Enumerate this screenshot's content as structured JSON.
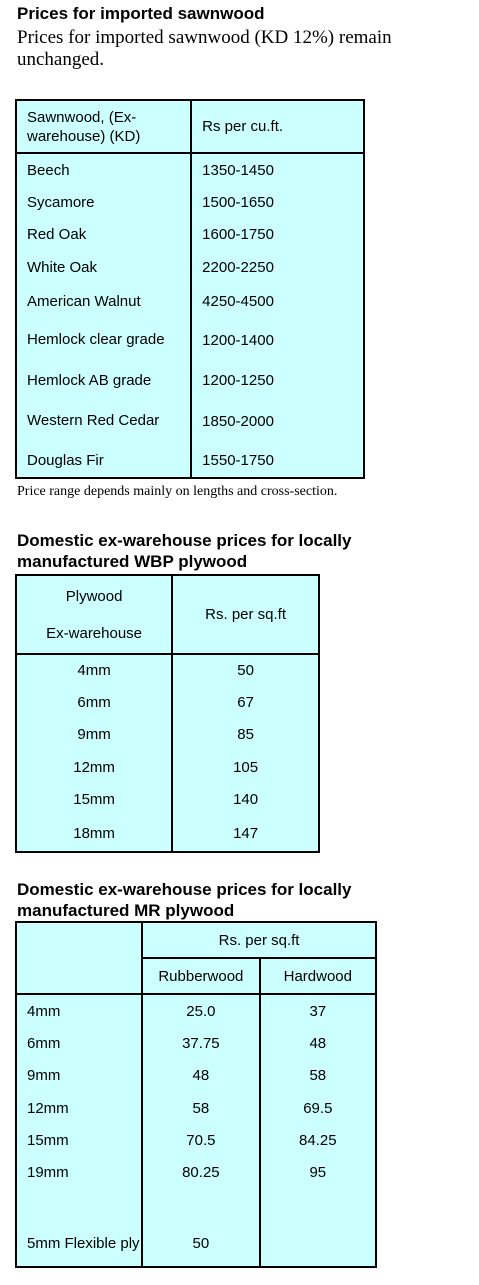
{
  "sawnwood": {
    "title": "Prices for imported sawnwood",
    "intro": "Prices for imported sawnwood (KD 12%) remain unchanged.",
    "header_col1": "Sawnwood, (Ex-warehouse) (KD)",
    "header_col2": "Rs per cu.ft.",
    "rows": [
      {
        "name": "Beech",
        "price": "1350-1450"
      },
      {
        "name": "Sycamore",
        "price": "1500-1650"
      },
      {
        "name": "Red Oak",
        "price": "1600-1750"
      },
      {
        "name": "White Oak",
        "price": "2200-2250"
      },
      {
        "name": "American Walnut",
        "price": "4250-4500"
      },
      {
        "name": "Hemlock clear grade",
        "price": "1200-1400"
      },
      {
        "name": "Hemlock AB grade",
        "price": "1200-1250"
      },
      {
        "name": "Western Red Cedar",
        "price": "1850-2000"
      },
      {
        "name": "Douglas Fir",
        "price": "1550-1750"
      }
    ],
    "note": "Price range depends mainly on lengths and cross-section."
  },
  "wbp": {
    "title": "Domestic ex-warehouse prices for locally manufactured WBP plywood",
    "header_col1_line1": "Plywood",
    "header_col1_line2": "Ex-warehouse",
    "header_col2": "Rs. per sq.ft",
    "rows": [
      {
        "size": "4mm",
        "price": "50"
      },
      {
        "size": "6mm",
        "price": "67"
      },
      {
        "size": "9mm",
        "price": "85"
      },
      {
        "size": "12mm",
        "price": "105"
      },
      {
        "size": "15mm",
        "price": "140"
      },
      {
        "size": "18mm",
        "price": "147"
      }
    ]
  },
  "mr": {
    "title": "Domestic ex-warehouse prices for locally manufactured MR plywood",
    "header_group": "Rs. per sq.ft",
    "header_col2": "Rubberwood",
    "header_col3": "Hardwood",
    "rows": [
      {
        "size": "4mm",
        "rubberwood": "25.0",
        "hardwood": "37"
      },
      {
        "size": "6mm",
        "rubberwood": "37.75",
        "hardwood": "48"
      },
      {
        "size": "9mm",
        "rubberwood": "48",
        "hardwood": "58"
      },
      {
        "size": "12mm",
        "rubberwood": "58",
        "hardwood": "69.5"
      },
      {
        "size": "15mm",
        "rubberwood": "70.5",
        "hardwood": "84.25"
      },
      {
        "size": "19mm",
        "rubberwood": "80.25",
        "hardwood": "95"
      },
      {
        "size": "5mm Flexible ply",
        "rubberwood": "50",
        "hardwood": ""
      }
    ]
  }
}
